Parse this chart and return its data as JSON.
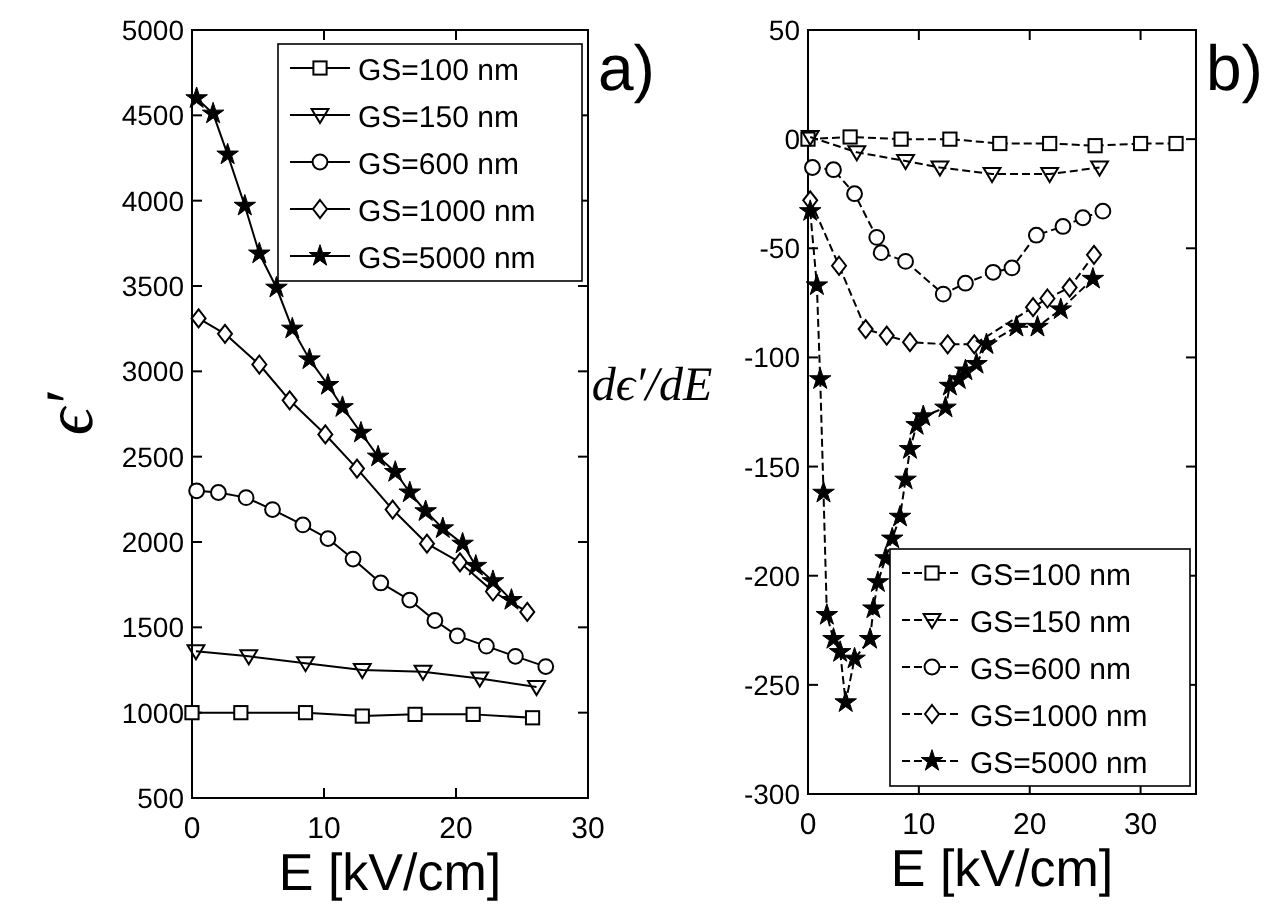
{
  "chart_data": [
    {
      "type": "line",
      "title": "a)",
      "xlabel": "E [kV/cm]",
      "ylabel": "ϵ′",
      "xlim": [
        0,
        30
      ],
      "xticks": [
        0,
        10,
        20,
        30
      ],
      "ylim": [
        500,
        5000
      ],
      "yticks": [
        500,
        1000,
        1500,
        2000,
        2500,
        3000,
        3500,
        4000,
        4500,
        5000
      ],
      "legend": "top right",
      "line_style": "solid",
      "series": [
        {
          "name": "GS=100 nm",
          "color": "#000000",
          "marker": "square",
          "x": [
            0,
            3.7,
            8.6,
            12.9,
            16.9,
            21.3,
            25.8
          ],
          "values": [
            1000,
            1000,
            1000,
            980,
            990,
            990,
            970
          ]
        },
        {
          "name": "GS=150 nm",
          "color": "#000000",
          "marker": "triangle",
          "x": [
            0.3,
            4.3,
            8.6,
            12.9,
            17.5,
            21.8,
            26.1
          ],
          "values": [
            1360,
            1330,
            1290,
            1250,
            1240,
            1200,
            1150
          ]
        },
        {
          "name": "GS=600 nm",
          "color": "#000000",
          "marker": "circle",
          "x": [
            0.35,
            2.0,
            4.1,
            6.1,
            8.4,
            10.3,
            12.2,
            14.3,
            16.5,
            18.4,
            20.1,
            22.3,
            24.5,
            26.8
          ],
          "values": [
            2300,
            2290,
            2260,
            2190,
            2100,
            2020,
            1900,
            1760,
            1660,
            1540,
            1450,
            1390,
            1330,
            1270
          ]
        },
        {
          "name": "GS=1000 nm",
          "color": "#000000",
          "marker": "diamond",
          "x": [
            0.5,
            2.5,
            5.1,
            7.4,
            10.1,
            12.5,
            15.2,
            17.8,
            20.3,
            22.8,
            25.4
          ],
          "values": [
            3310,
            3220,
            3040,
            2830,
            2630,
            2430,
            2190,
            1990,
            1880,
            1710,
            1590
          ]
        },
        {
          "name": "GS=5000 nm",
          "color": "#000000",
          "marker": "star",
          "x": [
            0.35,
            1.6,
            2.7,
            4.0,
            5.1,
            6.4,
            7.6,
            8.9,
            10.3,
            11.4,
            12.8,
            14.1,
            15.4,
            16.5,
            17.7,
            19.0,
            20.5,
            21.5,
            22.8,
            24.2
          ],
          "values": [
            4600,
            4510,
            4270,
            3970,
            3690,
            3490,
            3250,
            3070,
            2920,
            2790,
            2640,
            2500,
            2410,
            2290,
            2180,
            2080,
            1990,
            1860,
            1770,
            1660
          ]
        }
      ]
    },
    {
      "type": "line",
      "title": "b)",
      "xlabel": "E [kV/cm]",
      "ylabel": "dϵ′/dE",
      "xlim": [
        0,
        35
      ],
      "xticks": [
        0,
        10,
        20,
        30
      ],
      "ylim": [
        -300,
        50
      ],
      "yticks": [
        -300,
        -250,
        -200,
        -150,
        -100,
        -50,
        0,
        50
      ],
      "legend": "bottom right",
      "line_style": "dashed",
      "series": [
        {
          "name": "GS=100 nm",
          "color": "#000000",
          "marker": "square",
          "x": [
            0,
            3.8,
            8.4,
            12.8,
            17.3,
            21.8,
            25.9,
            30.0,
            33.2
          ],
          "values": [
            0,
            1,
            0,
            0,
            -2,
            -2,
            -3,
            -2,
            -2
          ]
        },
        {
          "name": "GS=150 nm",
          "color": "#000000",
          "marker": "triangle",
          "x": [
            0.2,
            4.4,
            8.8,
            11.9,
            16.6,
            21.8,
            26.3
          ],
          "values": [
            1,
            -6,
            -10,
            -13,
            -16,
            -16,
            -13
          ]
        },
        {
          "name": "GS=600 nm",
          "color": "#000000",
          "marker": "circle",
          "x": [
            0.4,
            2.3,
            4.2,
            6.2,
            6.6,
            8.8,
            12.2,
            14.2,
            16.7,
            18.4,
            20.6,
            23.0,
            24.8,
            26.6
          ],
          "values": [
            -13,
            -14,
            -25,
            -45,
            -52,
            -56,
            -71,
            -66,
            -61,
            -59,
            -44,
            -40,
            -36,
            -33
          ]
        },
        {
          "name": "GS=1000 nm",
          "color": "#000000",
          "marker": "diamond",
          "x": [
            0.2,
            2.8,
            5.2,
            7.1,
            9.2,
            12.6,
            15.0,
            20.3,
            21.6,
            23.6,
            25.8
          ],
          "values": [
            -28,
            -58,
            -87,
            -90,
            -93,
            -94,
            -94,
            -77,
            -73,
            -68,
            -53
          ]
        },
        {
          "name": "GS=5000 nm",
          "color": "#000000",
          "marker": "star",
          "x": [
            0.2,
            0.8,
            1.1,
            1.4,
            1.7,
            2.3,
            2.9,
            3.4,
            4.2,
            5.6,
            5.9,
            6.3,
            7.0,
            7.6,
            8.3,
            8.8,
            9.2,
            9.8,
            10.4,
            12.4,
            12.8,
            13.6,
            14.2,
            15.2,
            16.1,
            18.8,
            20.7,
            22.8,
            25.7
          ],
          "values": [
            -33,
            -67,
            -110,
            -162,
            -218,
            -229,
            -235,
            -258,
            -238,
            -229,
            -215,
            -203,
            -192,
            -183,
            -173,
            -156,
            -142,
            -131,
            -127,
            -123,
            -113,
            -110,
            -106,
            -103,
            -94,
            -86,
            -86,
            -78,
            -64
          ]
        }
      ]
    }
  ]
}
